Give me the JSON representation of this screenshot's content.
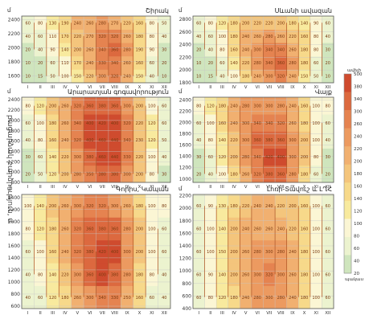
{
  "chart_data": {
    "type": "heatmap",
    "vertical_axis_title": "բացարձակ բարձրություն, մ",
    "months": [
      "I",
      "II",
      "III",
      "IV",
      "V",
      "VI",
      "VII",
      "VIII",
      "IX",
      "X",
      "XI",
      "XII"
    ],
    "panels": [
      {
        "title": "Շիրակ",
        "unit": "մ",
        "yticks": [
          1600,
          1800,
          2000,
          2200,
          2400
        ],
        "ylim": [
          1500,
          2450
        ],
        "values": [
          [
            10,
            15,
            50,
            100,
            150,
            220,
            300,
            320,
            240,
            150,
            40,
            10
          ],
          [
            10,
            20,
            60,
            110,
            170,
            240,
            330,
            340,
            260,
            160,
            60,
            20
          ],
          [
            20,
            40,
            90,
            140,
            200,
            260,
            340,
            360,
            280,
            190,
            90,
            30
          ],
          [
            40,
            60,
            110,
            170,
            220,
            270,
            320,
            320,
            260,
            180,
            80,
            40
          ],
          [
            60,
            80,
            130,
            190,
            240,
            260,
            280,
            270,
            220,
            160,
            80,
            50
          ]
        ]
      },
      {
        "title": "Արարատյան գոգավորություն",
        "unit": "մ",
        "yticks": [
          800,
          1000,
          1200,
          1400,
          1600,
          1800,
          2000,
          2200,
          2400
        ],
        "ylim": [
          800,
          2450
        ],
        "values": [
          [
            20,
            50,
            120,
            200,
            280,
            350,
            380,
            380,
            300,
            200,
            80,
            30
          ],
          [
            30,
            60,
            140,
            220,
            300,
            380,
            460,
            440,
            330,
            220,
            100,
            40
          ],
          [
            40,
            80,
            160,
            240,
            320,
            400,
            460,
            440,
            340,
            230,
            120,
            50
          ],
          [
            60,
            100,
            180,
            260,
            340,
            400,
            420,
            400,
            320,
            220,
            120,
            60
          ],
          [
            80,
            120,
            200,
            260,
            320,
            360,
            380,
            360,
            300,
            200,
            100,
            60
          ]
        ]
      },
      {
        "title": "Գորիս, Կապան",
        "unit": "մ",
        "yticks": [
          600,
          800,
          1000,
          1200,
          1400,
          1600,
          1800,
          2000,
          2200,
          2400
        ],
        "ylim": [
          560,
          2450
        ],
        "values": [
          [
            40,
            60,
            120,
            180,
            260,
            300,
            340,
            330,
            250,
            160,
            60,
            40
          ],
          [
            40,
            80,
            140,
            220,
            300,
            360,
            400,
            380,
            280,
            180,
            80,
            40
          ],
          [
            60,
            100,
            160,
            240,
            320,
            380,
            420,
            400,
            300,
            200,
            100,
            60
          ],
          [
            80,
            120,
            180,
            260,
            320,
            360,
            380,
            360,
            280,
            200,
            100,
            60
          ],
          [
            100,
            140,
            200,
            260,
            300,
            320,
            320,
            300,
            260,
            180,
            100,
            80
          ]
        ]
      },
      {
        "title": "Սևանի ավազան",
        "unit": "մ",
        "yticks": [
          1800,
          2000,
          2200,
          2400,
          2600,
          2800
        ],
        "ylim": [
          1800,
          2850
        ],
        "values": [
          [
            10,
            15,
            40,
            100,
            180,
            240,
            300,
            320,
            240,
            150,
            50,
            10
          ],
          [
            10,
            20,
            60,
            140,
            220,
            280,
            340,
            360,
            280,
            180,
            60,
            20
          ],
          [
            20,
            40,
            80,
            160,
            240,
            300,
            340,
            340,
            260,
            180,
            80,
            30
          ],
          [
            40,
            60,
            100,
            180,
            240,
            260,
            280,
            260,
            220,
            160,
            80,
            40
          ],
          [
            60,
            80,
            120,
            180,
            200,
            220,
            220,
            200,
            180,
            140,
            90,
            60
          ]
        ]
      },
      {
        "title": "Վայք",
        "unit": "մ",
        "yticks": [
          1000,
          1200,
          1400,
          1600,
          1800,
          2000,
          2200,
          2400
        ],
        "ylim": [
          940,
          2450
        ],
        "values": [
          [
            20,
            40,
            100,
            180,
            260,
            320,
            380,
            360,
            280,
            180,
            60,
            20
          ],
          [
            30,
            60,
            120,
            200,
            280,
            340,
            420,
            400,
            300,
            200,
            80,
            30
          ],
          [
            40,
            80,
            140,
            220,
            300,
            360,
            380,
            360,
            300,
            200,
            100,
            40
          ],
          [
            60,
            100,
            160,
            240,
            300,
            340,
            340,
            320,
            260,
            180,
            100,
            60
          ],
          [
            80,
            120,
            180,
            240,
            280,
            300,
            300,
            280,
            240,
            160,
            100,
            80
          ]
        ]
      },
      {
        "title": "Լոռի-Տավուշ և ԼՂՀ",
        "unit": "մ",
        "yticks": [
          400,
          600,
          800,
          1000,
          1200,
          1400,
          1600,
          1800,
          2000,
          2200
        ],
        "ylim": [
          400,
          2220
        ],
        "values": [
          [
            60,
            80,
            120,
            180,
            240,
            280,
            300,
            280,
            240,
            180,
            100,
            60
          ],
          [
            60,
            90,
            140,
            200,
            260,
            300,
            320,
            300,
            260,
            180,
            100,
            60
          ],
          [
            60,
            100,
            150,
            200,
            260,
            280,
            300,
            280,
            240,
            180,
            100,
            60
          ],
          [
            60,
            100,
            140,
            200,
            240,
            260,
            260,
            240,
            220,
            160,
            100,
            60
          ],
          [
            60,
            90,
            130,
            180,
            220,
            240,
            240,
            220,
            200,
            160,
            100,
            60
          ]
        ]
      }
    ],
    "legend": {
      "title": "ավելի",
      "ticks": [
        500,
        380,
        340,
        300,
        260,
        240,
        220,
        200,
        180,
        160,
        140,
        120,
        100,
        80,
        60,
        40,
        20
      ],
      "bottom_label": "պակաս"
    }
  },
  "colors": {
    "c0": "#cfe5bd",
    "c1": "#ecf3cf",
    "c2": "#fbf6d4",
    "c3": "#f8ea9e",
    "c4": "#f7d98a",
    "c5": "#f4c57c",
    "c6": "#f1b070",
    "c7": "#ec9a60",
    "c8": "#e58350",
    "c9": "#dc693f",
    "c10": "#cf4b2e"
  }
}
